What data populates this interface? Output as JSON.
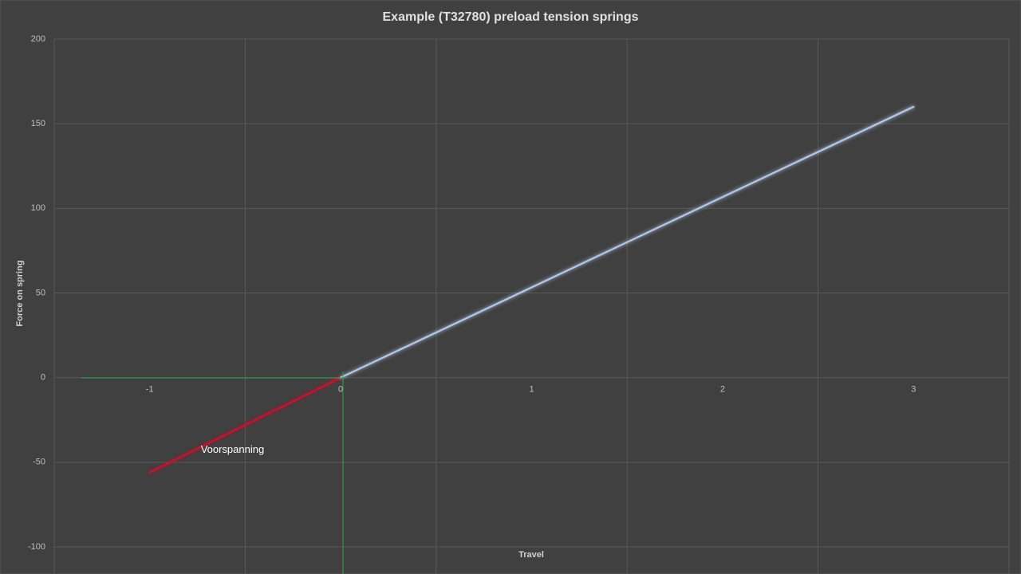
{
  "chart_data": {
    "type": "line",
    "title": "Example (T32780) preload tension springs",
    "x_label": "Travel",
    "y_label": "Force on spring",
    "categories": [
      "-1",
      "0",
      "1",
      "2",
      "3"
    ],
    "series": [
      {
        "name": "Voorspanning",
        "color": "#c0142e",
        "values": [
          -56,
          0,
          null,
          null,
          null
        ]
      },
      {
        "color": "#b4c7e7",
        "values": [
          null,
          0,
          53.3,
          106.7,
          160
        ]
      }
    ],
    "ylim": [
      -100,
      200
    ],
    "yticks": [
      -100,
      -50,
      0,
      50,
      100,
      150,
      200
    ],
    "grid": true
  }
}
